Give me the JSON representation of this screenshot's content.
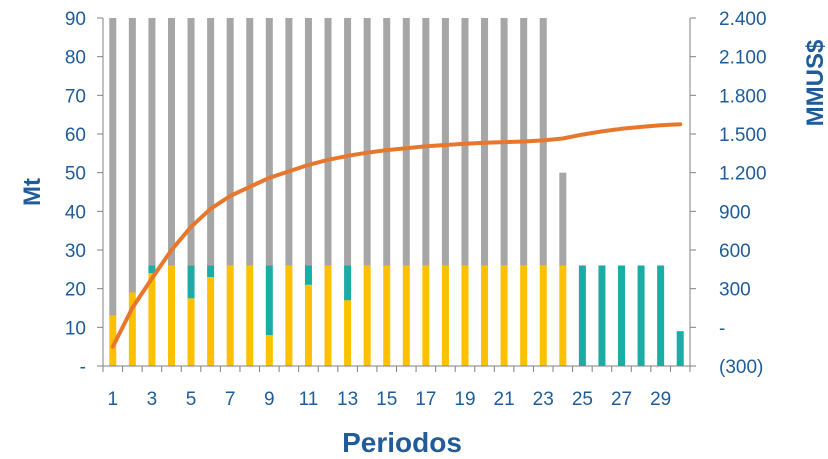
{
  "chart_data": {
    "type": "bar",
    "title": "",
    "xlabel": "Periodos",
    "ylabel": "Mt",
    "y2label": "MMUS$",
    "ylim": [
      0,
      90
    ],
    "y2lim": [
      -300,
      2400
    ],
    "grid": false,
    "legend": "none",
    "x": [
      1,
      2,
      3,
      4,
      5,
      6,
      7,
      8,
      9,
      10,
      11,
      12,
      13,
      14,
      15,
      16,
      17,
      18,
      19,
      20,
      21,
      22,
      23,
      24,
      25,
      26,
      27,
      28,
      29,
      30
    ],
    "x_tick_labels": [
      "1",
      "3",
      "5",
      "7",
      "9",
      "11",
      "13",
      "15",
      "17",
      "19",
      "21",
      "23",
      "25",
      "27",
      "29"
    ],
    "y_tick_labels": [
      "-",
      "10",
      "20",
      "30",
      "40",
      "50",
      "60",
      "70",
      "80",
      "90"
    ],
    "y2_tick_labels": [
      "(300)",
      "-",
      "300",
      "600",
      "900",
      "1.200",
      "1.500",
      "1.800",
      "2.100",
      "2.400"
    ],
    "series": [
      {
        "color": "#FFC000",
        "values": [
          13,
          19,
          24,
          26,
          17.5,
          23,
          26,
          26,
          8,
          26,
          21,
          26,
          17,
          26,
          26,
          26,
          26,
          26,
          26,
          26,
          26,
          26,
          26,
          26,
          0,
          0,
          0,
          0,
          0,
          0
        ]
      },
      {
        "color": "#1AADA5",
        "values": [
          0,
          0,
          2,
          0,
          8.5,
          3,
          0,
          0,
          18,
          0,
          5,
          0,
          9,
          0,
          0,
          0,
          0,
          0,
          0,
          0,
          0,
          0,
          0,
          0,
          26,
          26,
          26,
          26,
          26,
          9
        ]
      },
      {
        "color": "#A6A6A6",
        "values": [
          77,
          71,
          64,
          64,
          64,
          64,
          64,
          64,
          64,
          64,
          64,
          64,
          64,
          64,
          64,
          64,
          64,
          64,
          64,
          64,
          64,
          64,
          64,
          24,
          0,
          0,
          0,
          0,
          0,
          0
        ]
      }
    ],
    "line_series": {
      "color": "#E8772E",
      "axis": "right",
      "values": [
        -150,
        150,
        380,
        600,
        780,
        920,
        1020,
        1090,
        1160,
        1210,
        1260,
        1300,
        1330,
        1355,
        1375,
        1390,
        1405,
        1415,
        1425,
        1432,
        1437,
        1442,
        1450,
        1465,
        1495,
        1520,
        1540,
        1555,
        1568,
        1575
      ]
    }
  }
}
